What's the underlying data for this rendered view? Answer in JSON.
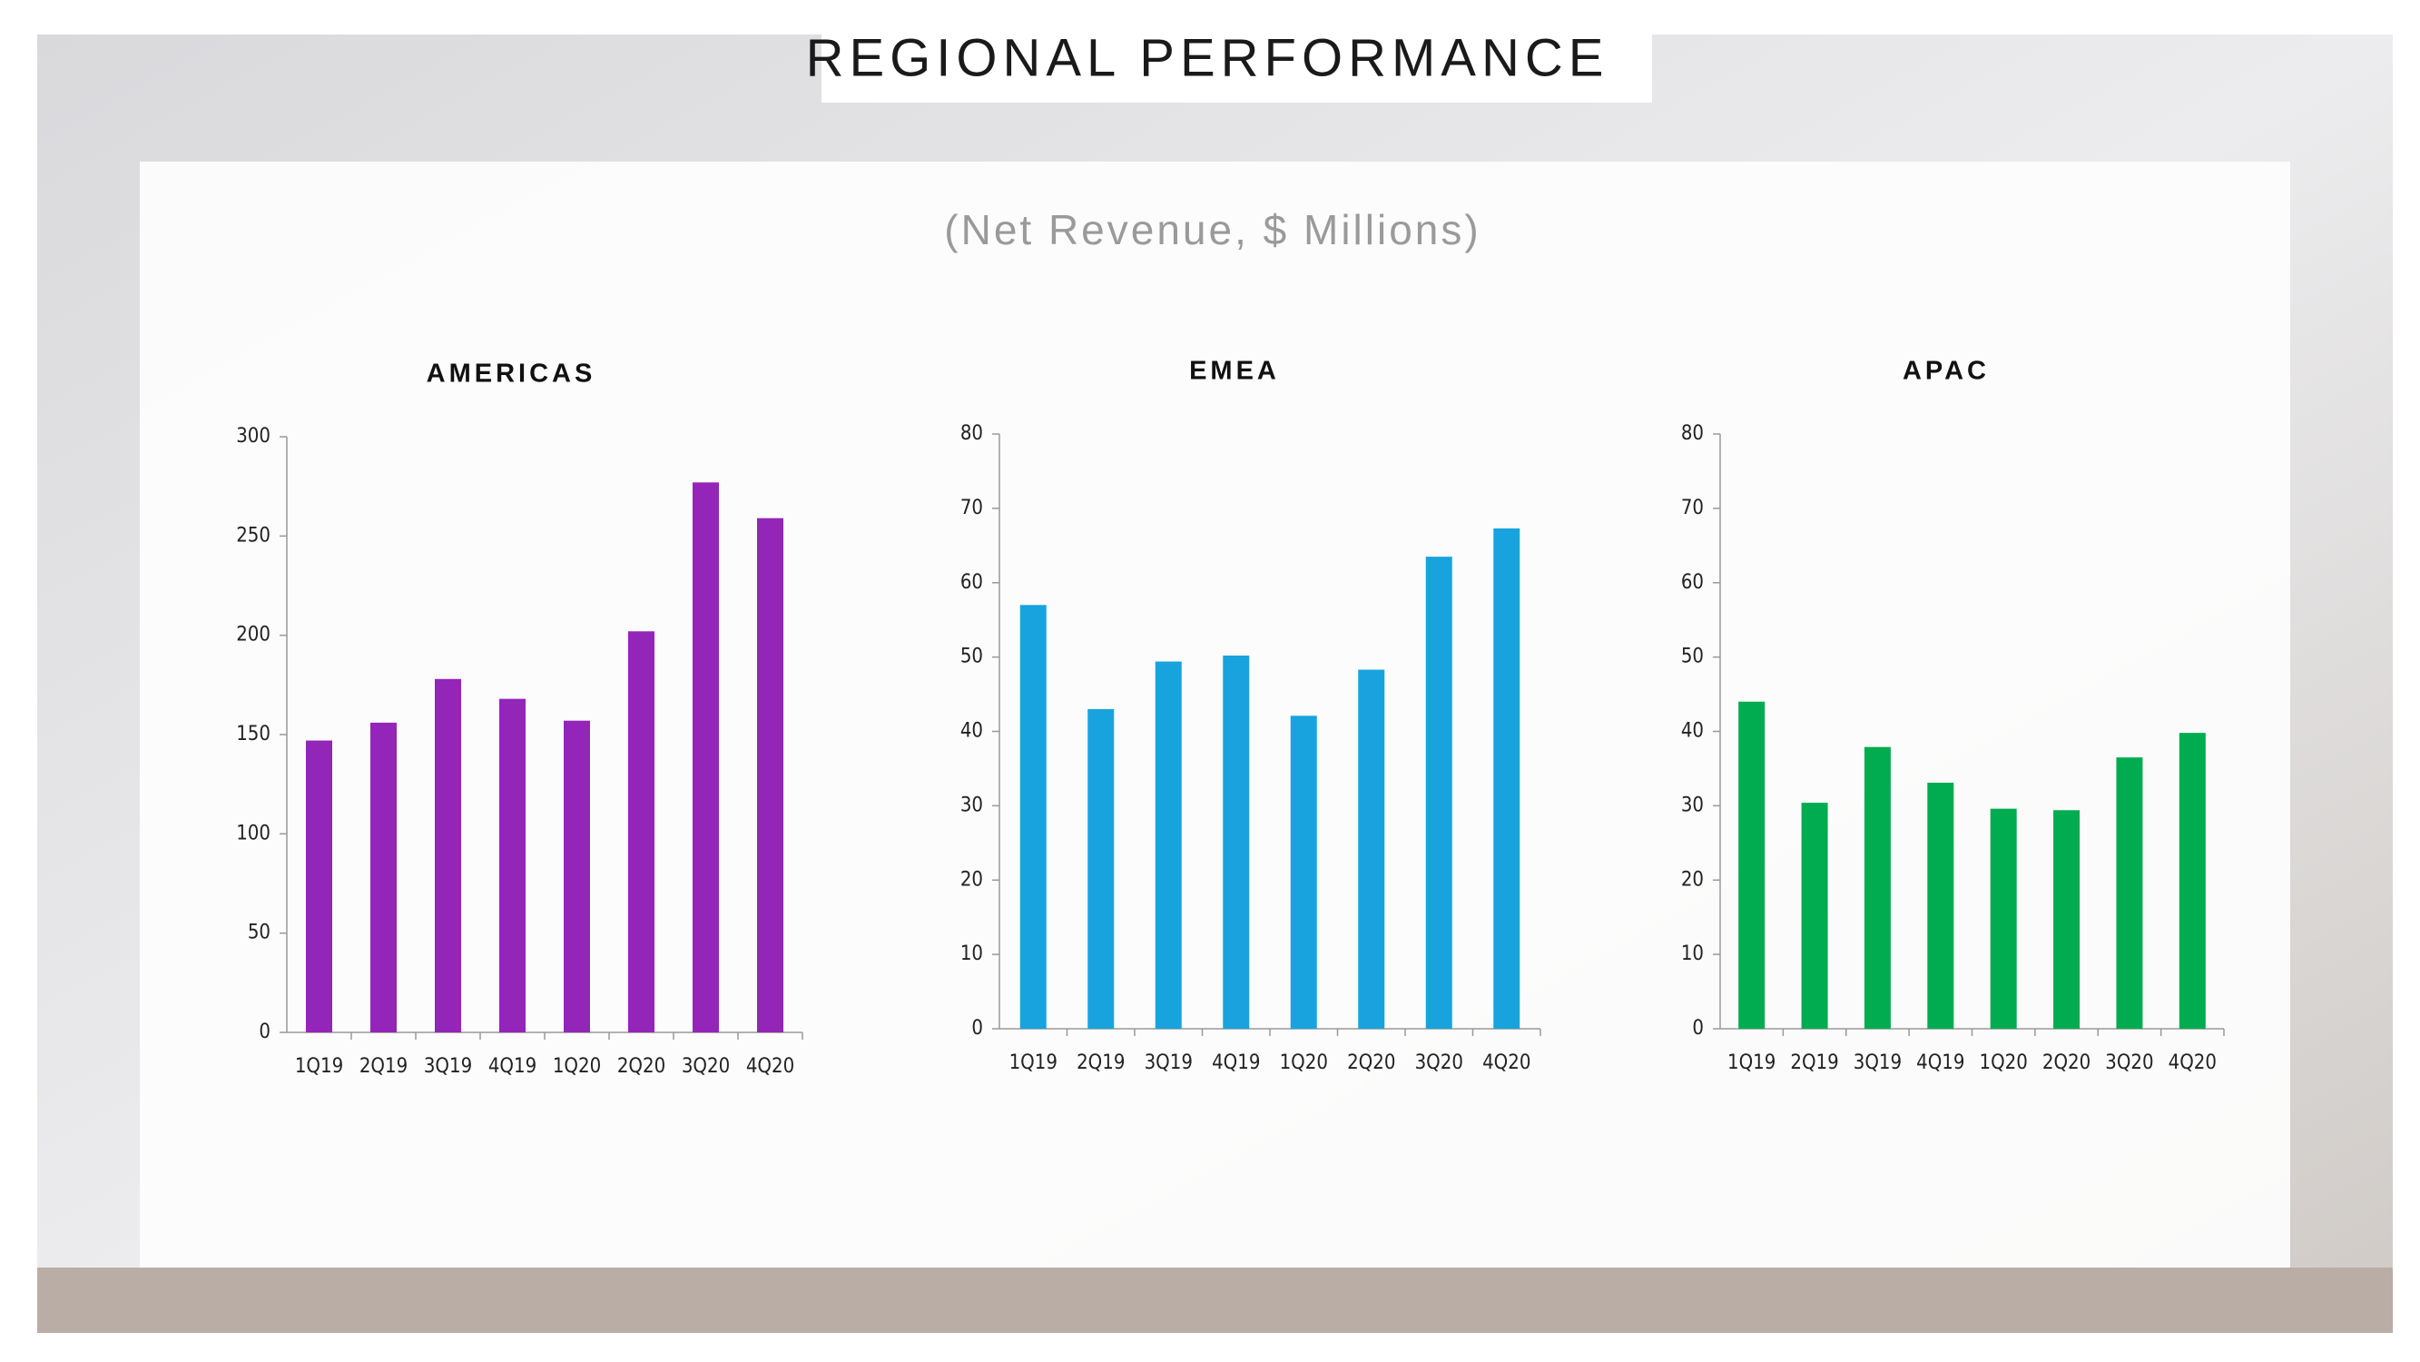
{
  "title": "REGIONAL PERFORMANCE",
  "subtitle": "(Net Revenue, $ Millions)",
  "chart_data": [
    {
      "type": "bar",
      "title": "AMERICAS",
      "color": "#9325b9",
      "categories": [
        "1Q19",
        "2Q19",
        "3Q19",
        "4Q19",
        "1Q20",
        "2Q20",
        "3Q20",
        "4Q20"
      ],
      "values": [
        147,
        156,
        178,
        168,
        157,
        202,
        277,
        259
      ],
      "ylim": [
        0,
        300
      ],
      "yticks": [
        0,
        50,
        100,
        150,
        200,
        250,
        300
      ],
      "grid": false
    },
    {
      "type": "bar",
      "title": "EMEA",
      "color": "#18a3de",
      "categories": [
        "1Q19",
        "2Q19",
        "3Q19",
        "4Q19",
        "1Q20",
        "2Q20",
        "3Q20",
        "4Q20"
      ],
      "values": [
        57,
        43,
        49.4,
        50.2,
        42.1,
        48.3,
        63.5,
        67.3
      ],
      "ylim": [
        0,
        80
      ],
      "yticks": [
        0,
        10,
        20,
        30,
        40,
        50,
        60,
        70,
        80
      ],
      "grid": false
    },
    {
      "type": "bar",
      "title": "APAC",
      "color": "#00ac4f",
      "categories": [
        "1Q19",
        "2Q19",
        "3Q19",
        "4Q19",
        "1Q20",
        "2Q20",
        "3Q20",
        "4Q20"
      ],
      "values": [
        44,
        30.4,
        37.9,
        33.1,
        29.6,
        29.4,
        36.5,
        39.8
      ],
      "ylim": [
        0,
        80
      ],
      "yticks": [
        0,
        10,
        20,
        30,
        40,
        50,
        60,
        70,
        80
      ],
      "grid": false
    }
  ]
}
